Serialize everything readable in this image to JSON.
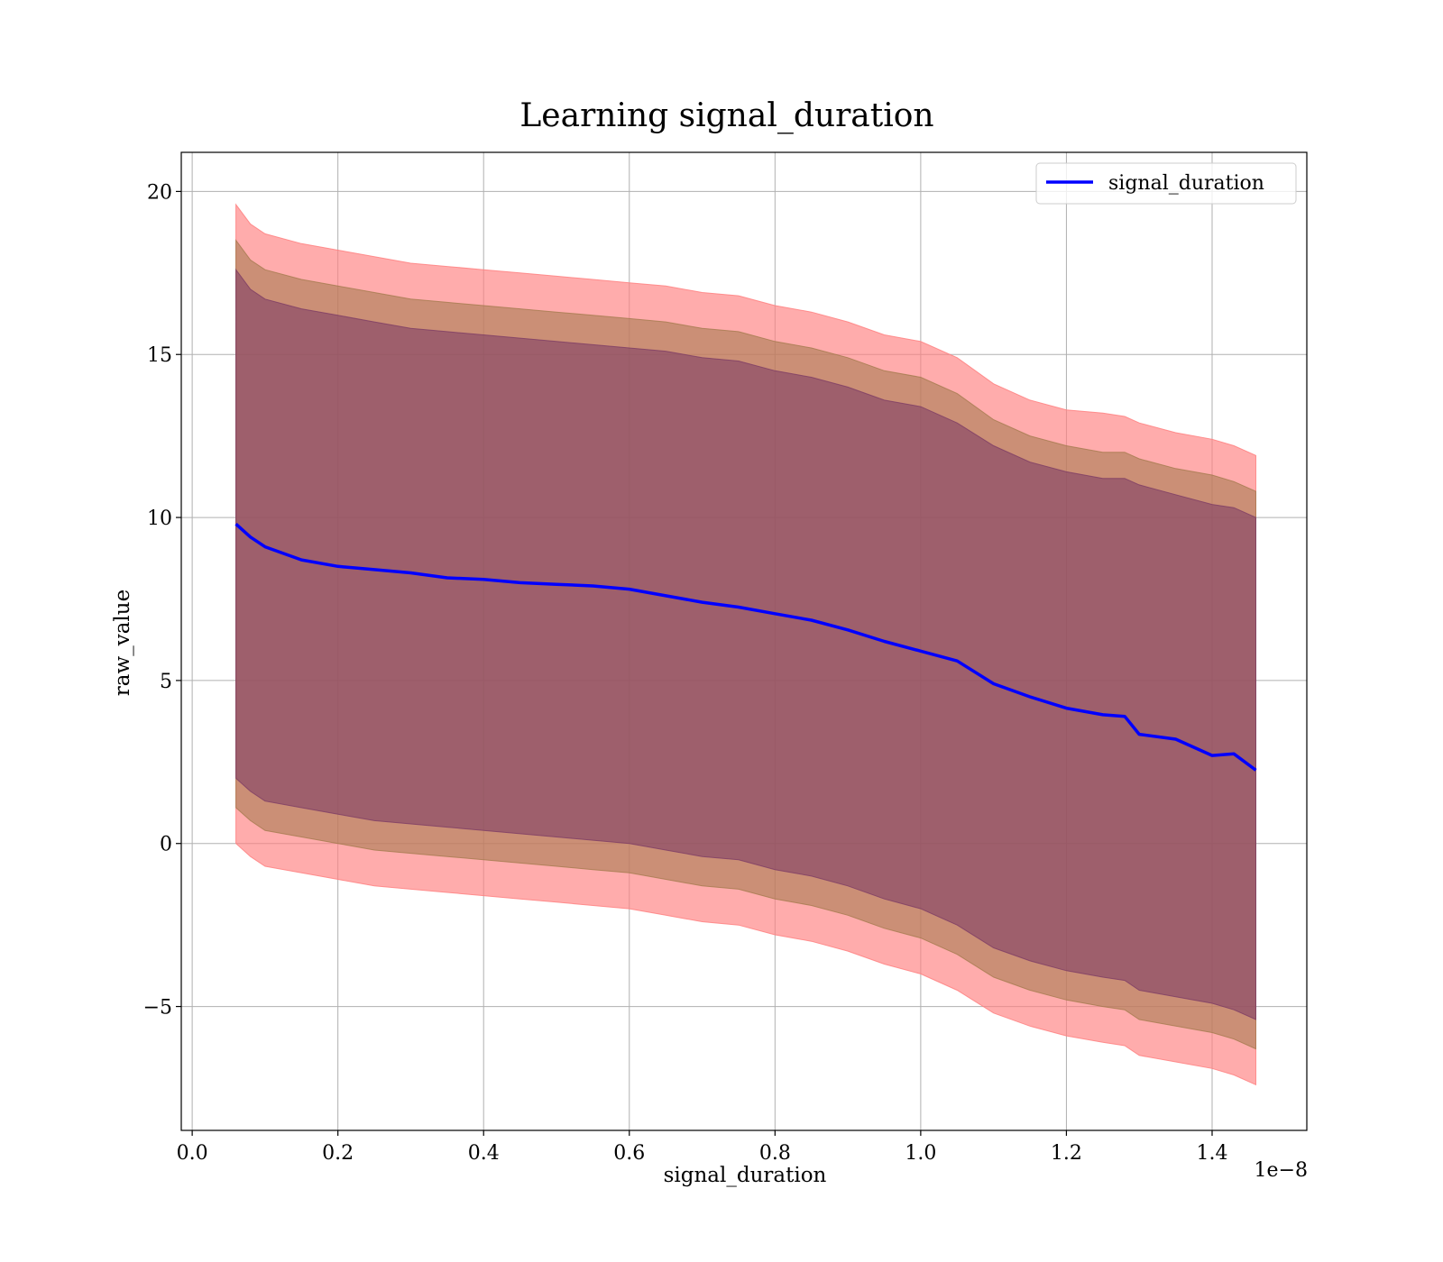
{
  "chart_data": {
    "type": "line",
    "title": "Learning signal_duration",
    "xlabel": "signal_duration",
    "ylabel": "raw_value",
    "x_offset_text": "1e−8",
    "xlim": [
      -0.015,
      1.53
    ],
    "ylim": [
      -8.8,
      21.2
    ],
    "x_ticks": [
      0.0,
      0.2,
      0.4,
      0.6,
      0.8,
      1.0,
      1.2,
      1.4
    ],
    "x_tick_labels": [
      "0.0",
      "0.2",
      "0.4",
      "0.6",
      "0.8",
      "1.0",
      "1.2",
      "1.4"
    ],
    "y_ticks": [
      -5,
      0,
      5,
      10,
      15,
      20
    ],
    "y_tick_labels": [
      "−5",
      "0",
      "5",
      "10",
      "15",
      "20"
    ],
    "grid": true,
    "legend_position": "top-right",
    "colors": {
      "line": "#0000ff",
      "band_outer": "#ff8080",
      "band_middle": "#a87a4a",
      "band_inner": "#7a3a6a"
    },
    "x": [
      0.06,
      0.08,
      0.1,
      0.15,
      0.2,
      0.25,
      0.3,
      0.35,
      0.4,
      0.45,
      0.5,
      0.55,
      0.6,
      0.65,
      0.7,
      0.75,
      0.8,
      0.85,
      0.9,
      0.95,
      1.0,
      1.05,
      1.1,
      1.15,
      1.2,
      1.25,
      1.28,
      1.3,
      1.35,
      1.4,
      1.43,
      1.46
    ],
    "series": [
      {
        "name": "signal_duration",
        "role": "mean",
        "values": [
          9.8,
          9.4,
          9.1,
          8.7,
          8.5,
          8.4,
          8.3,
          8.15,
          8.1,
          8.0,
          7.95,
          7.9,
          7.8,
          7.6,
          7.4,
          7.25,
          7.05,
          6.85,
          6.55,
          6.2,
          5.9,
          5.6,
          4.9,
          4.5,
          4.15,
          3.95,
          3.9,
          3.35,
          3.2,
          2.7,
          2.75,
          2.25
        ]
      },
      {
        "role": "band_outer_upper",
        "values": [
          19.6,
          19.0,
          18.7,
          18.4,
          18.2,
          18.0,
          17.8,
          17.7,
          17.6,
          17.5,
          17.4,
          17.3,
          17.2,
          17.1,
          16.9,
          16.8,
          16.5,
          16.3,
          16.0,
          15.6,
          15.4,
          14.9,
          14.1,
          13.6,
          13.3,
          13.2,
          13.1,
          12.9,
          12.6,
          12.4,
          12.2,
          11.9
        ]
      },
      {
        "role": "band_outer_lower",
        "values": [
          0.0,
          -0.4,
          -0.7,
          -0.9,
          -1.1,
          -1.3,
          -1.4,
          -1.5,
          -1.6,
          -1.7,
          -1.8,
          -1.9,
          -2.0,
          -2.2,
          -2.4,
          -2.5,
          -2.8,
          -3.0,
          -3.3,
          -3.7,
          -4.0,
          -4.5,
          -5.2,
          -5.6,
          -5.9,
          -6.1,
          -6.2,
          -6.5,
          -6.7,
          -6.9,
          -7.1,
          -7.4
        ]
      },
      {
        "role": "band_middle_upper",
        "values": [
          18.5,
          17.9,
          17.6,
          17.3,
          17.1,
          16.9,
          16.7,
          16.6,
          16.5,
          16.4,
          16.3,
          16.2,
          16.1,
          16.0,
          15.8,
          15.7,
          15.4,
          15.2,
          14.9,
          14.5,
          14.3,
          13.8,
          13.0,
          12.5,
          12.2,
          12.0,
          12.0,
          11.8,
          11.5,
          11.3,
          11.1,
          10.8
        ]
      },
      {
        "role": "band_middle_lower",
        "values": [
          1.1,
          0.7,
          0.4,
          0.2,
          0.0,
          -0.2,
          -0.3,
          -0.4,
          -0.5,
          -0.6,
          -0.7,
          -0.8,
          -0.9,
          -1.1,
          -1.3,
          -1.4,
          -1.7,
          -1.9,
          -2.2,
          -2.6,
          -2.9,
          -3.4,
          -4.1,
          -4.5,
          -4.8,
          -5.0,
          -5.1,
          -5.4,
          -5.6,
          -5.8,
          -6.0,
          -6.3
        ]
      },
      {
        "role": "band_inner_upper",
        "values": [
          17.6,
          17.0,
          16.7,
          16.4,
          16.2,
          16.0,
          15.8,
          15.7,
          15.6,
          15.5,
          15.4,
          15.3,
          15.2,
          15.1,
          14.9,
          14.8,
          14.5,
          14.3,
          14.0,
          13.6,
          13.4,
          12.9,
          12.2,
          11.7,
          11.4,
          11.2,
          11.2,
          11.0,
          10.7,
          10.4,
          10.3,
          10.0
        ]
      },
      {
        "role": "band_inner_lower",
        "values": [
          2.0,
          1.6,
          1.3,
          1.1,
          0.9,
          0.7,
          0.6,
          0.5,
          0.4,
          0.3,
          0.2,
          0.1,
          0.0,
          -0.2,
          -0.4,
          -0.5,
          -0.8,
          -1.0,
          -1.3,
          -1.7,
          -2.0,
          -2.5,
          -3.2,
          -3.6,
          -3.9,
          -4.1,
          -4.2,
          -4.5,
          -4.7,
          -4.9,
          -5.1,
          -5.4
        ]
      }
    ]
  }
}
